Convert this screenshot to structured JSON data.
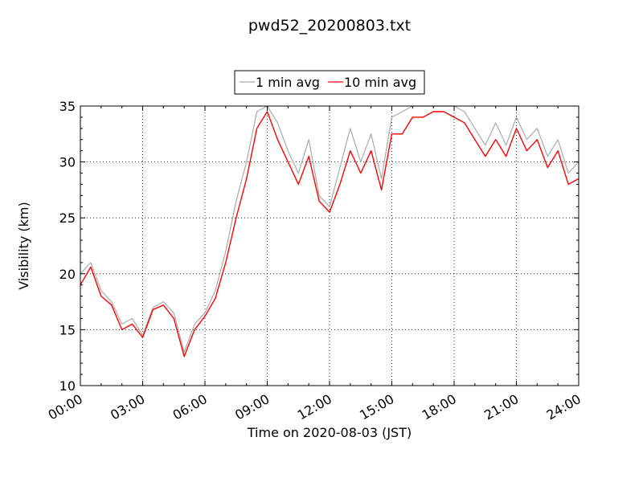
{
  "chart_data": {
    "type": "line",
    "title": "pwd52_20200803.txt",
    "xlabel": "Time on 2020-08-03 (JST)",
    "ylabel": "Visibility (km)",
    "xlim": [
      "00:00",
      "24:00"
    ],
    "ylim": [
      10,
      35
    ],
    "x_ticks": [
      "00:00",
      "03:00",
      "06:00",
      "09:00",
      "12:00",
      "15:00",
      "18:00",
      "21:00",
      "24:00"
    ],
    "y_ticks": [
      10,
      15,
      20,
      25,
      30,
      35
    ],
    "grid": true,
    "legend_position": "top-center",
    "x": [
      "00:00",
      "00:30",
      "01:00",
      "01:30",
      "02:00",
      "02:30",
      "03:00",
      "03:30",
      "04:00",
      "04:30",
      "05:00",
      "05:30",
      "06:00",
      "06:30",
      "07:00",
      "07:30",
      "08:00",
      "08:30",
      "09:00",
      "09:30",
      "10:00",
      "10:30",
      "11:00",
      "11:30",
      "12:00",
      "12:30",
      "13:00",
      "13:30",
      "14:00",
      "14:30",
      "15:00",
      "15:30",
      "16:00",
      "16:30",
      "17:00",
      "17:30",
      "18:00",
      "18:30",
      "19:00",
      "19:30",
      "20:00",
      "20:30",
      "21:00",
      "21:30",
      "22:00",
      "22:30",
      "23:00",
      "23:30",
      "24:00"
    ],
    "series": [
      {
        "name": "10 min avg",
        "color": "#ff0000",
        "values": [
          19.0,
          20.6,
          18.0,
          17.2,
          15.0,
          15.5,
          14.3,
          16.8,
          17.2,
          16.0,
          12.6,
          15.0,
          16.2,
          17.8,
          21.0,
          25.0,
          28.5,
          33.0,
          34.5,
          32.0,
          30.0,
          28.0,
          30.5,
          26.5,
          25.5,
          28.0,
          31.0,
          29.0,
          31.0,
          27.5,
          32.5,
          32.5,
          34.0,
          34.0,
          34.5,
          34.5,
          34.0,
          33.5,
          32.0,
          30.5,
          32.0,
          30.5,
          33.0,
          31.0,
          32.0,
          29.5,
          31.0,
          28.0,
          28.5
        ]
      },
      {
        "name": "1 min avg",
        "color": "#aaaaaa",
        "values": [
          20.0,
          21.0,
          18.5,
          17.5,
          15.5,
          16.0,
          14.5,
          17.0,
          17.5,
          16.5,
          13.0,
          15.5,
          16.5,
          18.5,
          22.0,
          26.5,
          30.0,
          34.5,
          35.0,
          33.5,
          31.0,
          29.0,
          32.0,
          27.0,
          26.0,
          29.5,
          33.0,
          30.0,
          32.5,
          28.5,
          34.0,
          34.5,
          35.0,
          35.0,
          35.0,
          35.0,
          35.0,
          34.5,
          33.0,
          31.5,
          33.5,
          31.5,
          34.0,
          32.0,
          33.0,
          30.5,
          32.0,
          29.0,
          30.0
        ]
      }
    ]
  }
}
